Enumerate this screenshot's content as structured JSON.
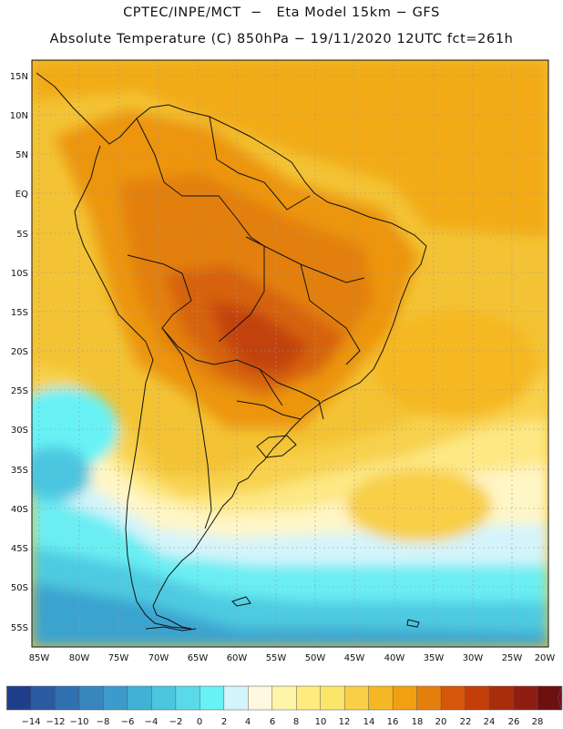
{
  "title_line1": "CPTEC/INPE/MCT  −   Eta Model 15km − GFS",
  "title_line2": "Absolute Temperature (C) 850hPa − 19/11/2020 12UTC fct=261h",
  "lat_labels": [
    "15N",
    "10N",
    "5N",
    "EQ",
    "5S",
    "10S",
    "15S",
    "20S",
    "25S",
    "30S",
    "35S",
    "40S",
    "45S",
    "50S",
    "55S"
  ],
  "lon_labels": [
    "85W",
    "80W",
    "75W",
    "70W",
    "65W",
    "60W",
    "55W",
    "50W",
    "45W",
    "40W",
    "35W",
    "30W",
    "25W",
    "20W"
  ],
  "colorbar": {
    "labels": [
      "−14",
      "−12",
      "−10",
      "−8",
      "−6",
      "−4",
      "−2",
      "0",
      "2",
      "4",
      "6",
      "8",
      "10",
      "12",
      "14",
      "16",
      "18",
      "20",
      "22",
      "24",
      "26",
      "28"
    ],
    "colors": [
      "#1f3f8c",
      "#2a5aa0",
      "#2f70b0",
      "#3787be",
      "#3b9ccb",
      "#40b2d6",
      "#4bc6e0",
      "#5ad9eb",
      "#68f2f6",
      "#d4f4fb",
      "#fff8e0",
      "#fff5a8",
      "#ffeb7f",
      "#fce66a",
      "#f8cf46",
      "#f5b824",
      "#f2a012",
      "#e6800d",
      "#d6560b",
      "#c43e08",
      "#a82e0b",
      "#8e1e11",
      "#6e1010"
    ],
    "under_color": "#1a2f7a",
    "over_color": "#7a0f26"
  }
}
